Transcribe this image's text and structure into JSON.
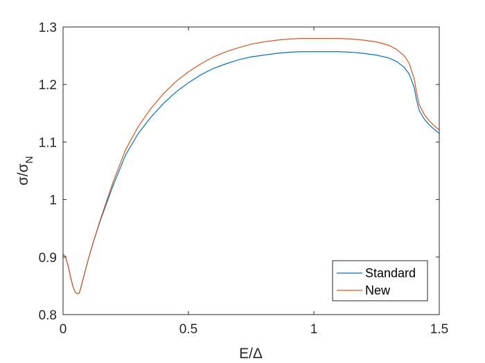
{
  "chart_data": {
    "type": "line",
    "xlabel": "E/Δ",
    "ylabel": {
      "base": "σ/σ",
      "subscript": "N"
    },
    "xlim": [
      0,
      1.5
    ],
    "ylim": [
      0.8,
      1.3
    ],
    "xticks": [
      0,
      0.5,
      1,
      1.5
    ],
    "xtick_labels": [
      "0",
      "0.5",
      "1",
      "1.5"
    ],
    "yticks": [
      0.8,
      0.9,
      1.0,
      1.1,
      1.2,
      1.3
    ],
    "ytick_labels": [
      "0.8",
      "0.9",
      "1",
      "1.1",
      "1.2",
      "1.3"
    ],
    "grid": false,
    "legend_position": "bottom-right",
    "series": [
      {
        "name": "Standard",
        "color": "#0072BD",
        "x": [
          0,
          0.01,
          0.02,
          0.03,
          0.04,
          0.05,
          0.06,
          0.065,
          0.07,
          0.08,
          0.1,
          0.12,
          0.15,
          0.2,
          0.25,
          0.3,
          0.35,
          0.4,
          0.45,
          0.5,
          0.55,
          0.6,
          0.65,
          0.7,
          0.75,
          0.8,
          0.85,
          0.9,
          0.95,
          1.0,
          1.05,
          1.1,
          1.15,
          1.2,
          1.25,
          1.3,
          1.33,
          1.36,
          1.38,
          1.4,
          1.41,
          1.42,
          1.44,
          1.46,
          1.48,
          1.5
        ],
        "y": [
          0.905,
          0.9,
          0.885,
          0.865,
          0.848,
          0.838,
          0.836,
          0.838,
          0.845,
          0.862,
          0.895,
          0.925,
          0.965,
          1.025,
          1.078,
          1.115,
          1.143,
          1.167,
          1.187,
          1.203,
          1.217,
          1.228,
          1.236,
          1.243,
          1.248,
          1.251,
          1.254,
          1.256,
          1.257,
          1.257,
          1.257,
          1.257,
          1.256,
          1.254,
          1.251,
          1.246,
          1.24,
          1.23,
          1.218,
          1.195,
          1.172,
          1.155,
          1.14,
          1.13,
          1.122,
          1.115
        ]
      },
      {
        "name": "New",
        "color": "#D95319",
        "x": [
          0,
          0.01,
          0.02,
          0.03,
          0.04,
          0.05,
          0.06,
          0.065,
          0.07,
          0.08,
          0.1,
          0.12,
          0.15,
          0.2,
          0.25,
          0.3,
          0.35,
          0.4,
          0.45,
          0.5,
          0.55,
          0.6,
          0.65,
          0.7,
          0.75,
          0.8,
          0.85,
          0.9,
          0.95,
          1.0,
          1.05,
          1.1,
          1.15,
          1.2,
          1.25,
          1.3,
          1.33,
          1.36,
          1.38,
          1.4,
          1.41,
          1.42,
          1.44,
          1.46,
          1.48,
          1.5
        ],
        "y": [
          0.905,
          0.9,
          0.885,
          0.865,
          0.848,
          0.838,
          0.836,
          0.838,
          0.845,
          0.862,
          0.895,
          0.925,
          0.967,
          1.031,
          1.087,
          1.127,
          1.158,
          1.184,
          1.205,
          1.222,
          1.236,
          1.248,
          1.257,
          1.264,
          1.27,
          1.274,
          1.277,
          1.279,
          1.28,
          1.28,
          1.28,
          1.28,
          1.279,
          1.277,
          1.274,
          1.268,
          1.261,
          1.25,
          1.237,
          1.21,
          1.185,
          1.165,
          1.148,
          1.137,
          1.128,
          1.121
        ]
      }
    ]
  }
}
